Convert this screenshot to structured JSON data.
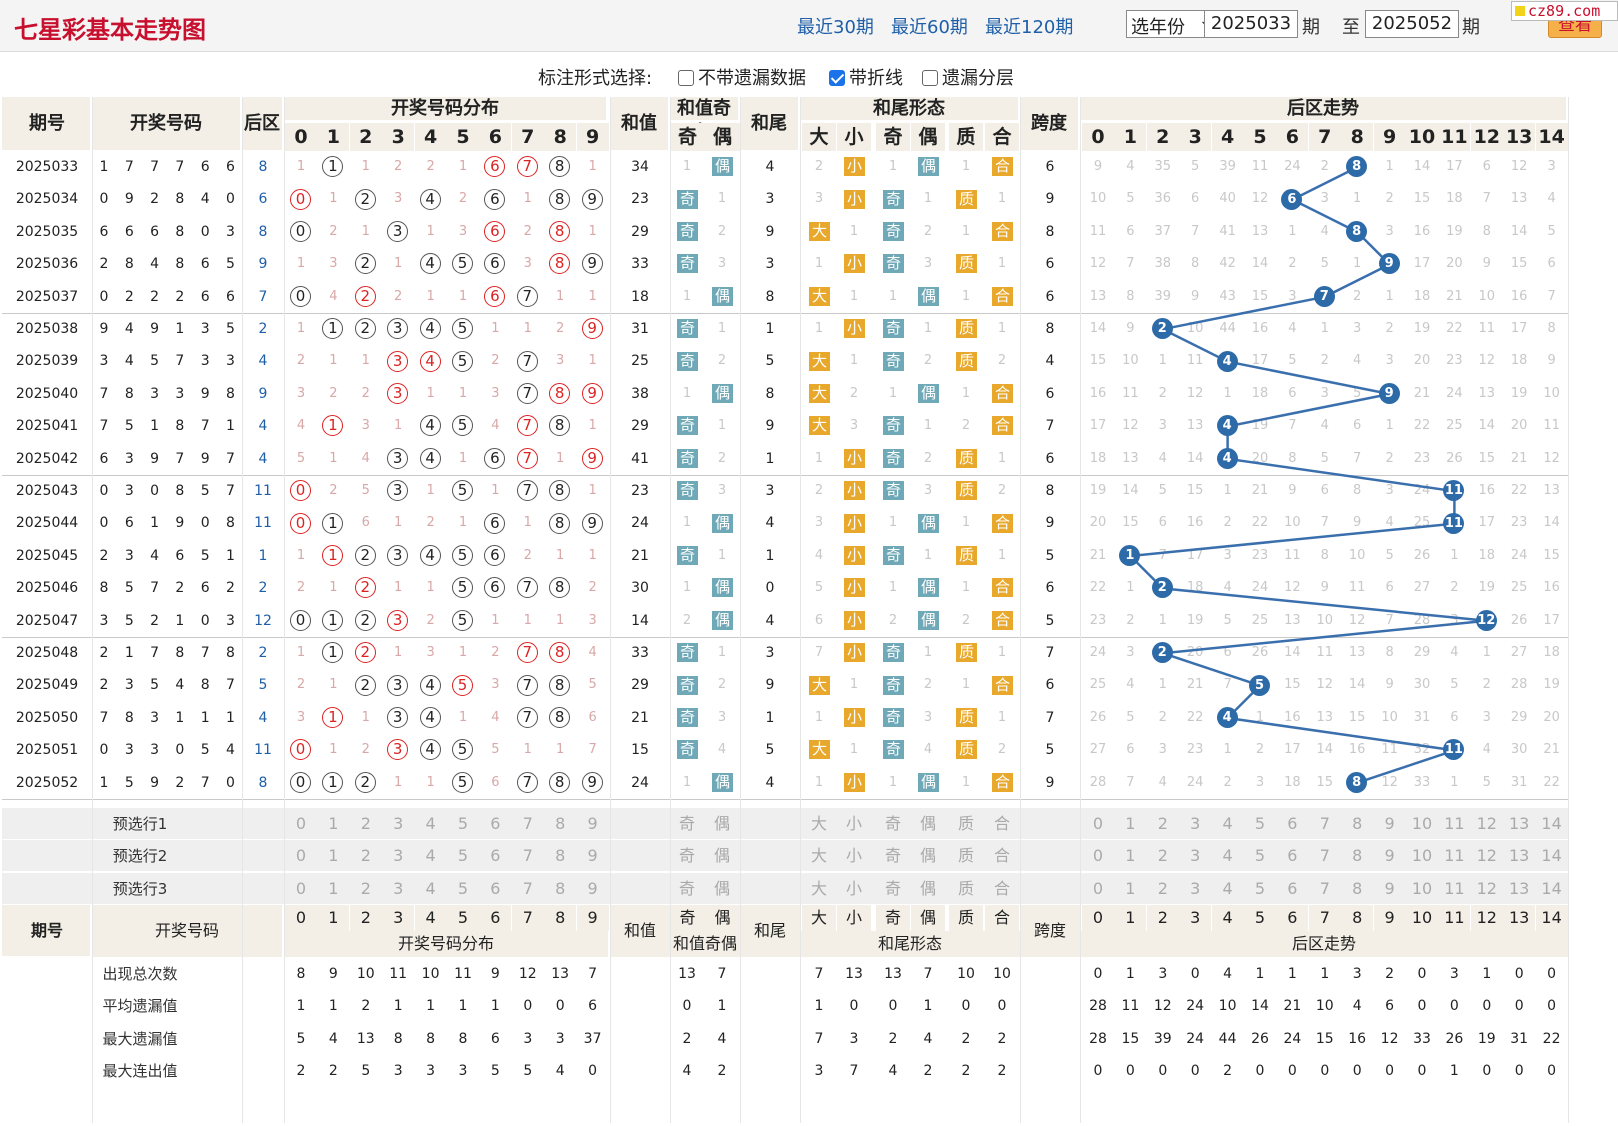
{
  "header": {
    "title": "七星彩基本走势图",
    "links": [
      "最近30期",
      "最近60期",
      "最近120期"
    ],
    "year_select": "选年份",
    "from_issue": "2025033",
    "to_issue": "2025052",
    "issue_label": "期",
    "to_label": "至",
    "query_label": "查看",
    "logo": "cz89.com"
  },
  "options": {
    "label": "标注形式选择:",
    "items": [
      {
        "label": "不带遗漏数据",
        "checked": false
      },
      {
        "label": "带折线",
        "checked": true
      },
      {
        "label": "遗漏分层",
        "checked": false
      }
    ]
  },
  "table_header": {
    "issue": "期号",
    "numbers": "开奖号码",
    "back": "后区",
    "dist": "开奖号码分布",
    "sum": "和值",
    "sum_parity": "和值奇偶",
    "odd": "奇",
    "even": "偶",
    "tail": "和尾",
    "tail_form": "和尾形态",
    "big": "大",
    "small": "小",
    "prime": "质",
    "composite": "合",
    "span": "跨度",
    "back_trend": "后区走势"
  },
  "rows": [
    {
      "issue": "2025033",
      "nums": [
        1,
        7,
        7,
        7,
        6,
        6
      ],
      "back": 8,
      "dist": [
        "1",
        "B",
        "1",
        "2",
        "2",
        "1",
        "R",
        "R",
        "B",
        "1"
      ],
      "sum": 34,
      "par": [
        "1",
        "偶"
      ],
      "tail": 4,
      "form": [
        "2",
        "小",
        "1",
        "偶",
        "1",
        "合"
      ],
      "span": 6,
      "btrend": [
        "9",
        "4",
        "35",
        "5",
        "39",
        "11",
        "24",
        "2",
        "N",
        "1",
        "14",
        "17",
        "6",
        "12",
        "3"
      ]
    },
    {
      "issue": "2025034",
      "nums": [
        0,
        9,
        2,
        8,
        4,
        0
      ],
      "back": 6,
      "dist": [
        "R",
        "1",
        "B",
        "3",
        "B",
        "2",
        "B",
        "1",
        "B",
        "B"
      ],
      "sum": 23,
      "par": [
        "奇",
        "1"
      ],
      "tail": 3,
      "form": [
        "3",
        "小",
        "奇",
        "1",
        "质",
        "1"
      ],
      "span": 9,
      "btrend": [
        "10",
        "5",
        "36",
        "6",
        "40",
        "12",
        "N",
        "3",
        "1",
        "2",
        "15",
        "18",
        "7",
        "13",
        "4"
      ]
    },
    {
      "issue": "2025035",
      "nums": [
        6,
        6,
        6,
        8,
        0,
        3
      ],
      "back": 8,
      "dist": [
        "B",
        "2",
        "1",
        "B",
        "1",
        "3",
        "R",
        "2",
        "R",
        "1"
      ],
      "sum": 29,
      "par": [
        "奇",
        "2"
      ],
      "tail": 9,
      "form": [
        "大",
        "1",
        "奇",
        "2",
        "1",
        "合"
      ],
      "span": 8,
      "btrend": [
        "11",
        "6",
        "37",
        "7",
        "41",
        "13",
        "1",
        "4",
        "N",
        "3",
        "16",
        "19",
        "8",
        "14",
        "5"
      ]
    },
    {
      "issue": "2025036",
      "nums": [
        2,
        8,
        4,
        8,
        6,
        5
      ],
      "back": 9,
      "dist": [
        "1",
        "3",
        "B",
        "1",
        "B",
        "B",
        "B",
        "3",
        "R",
        "B"
      ],
      "sum": 33,
      "par": [
        "奇",
        "3"
      ],
      "tail": 3,
      "form": [
        "1",
        "小",
        "奇",
        "3",
        "质",
        "1"
      ],
      "span": 6,
      "btrend": [
        "12",
        "7",
        "38",
        "8",
        "42",
        "14",
        "2",
        "5",
        "1",
        "N",
        "17",
        "20",
        "9",
        "15",
        "6"
      ]
    },
    {
      "issue": "2025037",
      "nums": [
        0,
        2,
        2,
        2,
        6,
        6
      ],
      "back": 7,
      "dist": [
        "B",
        "4",
        "R",
        "2",
        "1",
        "1",
        "R",
        "B",
        "1",
        "1"
      ],
      "sum": 18,
      "par": [
        "1",
        "偶"
      ],
      "tail": 8,
      "form": [
        "大",
        "1",
        "1",
        "偶",
        "1",
        "合"
      ],
      "span": 6,
      "btrend": [
        "13",
        "8",
        "39",
        "9",
        "43",
        "15",
        "3",
        "N",
        "2",
        "1",
        "18",
        "21",
        "10",
        "16",
        "7"
      ]
    },
    {
      "issue": "2025038",
      "nums": [
        9,
        4,
        9,
        1,
        3,
        5
      ],
      "back": 2,
      "dist": [
        "1",
        "B",
        "B",
        "B",
        "B",
        "B",
        "1",
        "1",
        "2",
        "R"
      ],
      "sum": 31,
      "par": [
        "奇",
        "1"
      ],
      "tail": 1,
      "form": [
        "1",
        "小",
        "奇",
        "1",
        "质",
        "1"
      ],
      "span": 8,
      "btrend": [
        "14",
        "9",
        "N",
        "10",
        "44",
        "16",
        "4",
        "1",
        "3",
        "2",
        "19",
        "22",
        "11",
        "17",
        "8"
      ]
    },
    {
      "issue": "2025039",
      "nums": [
        3,
        4,
        5,
        7,
        3,
        3
      ],
      "back": 4,
      "dist": [
        "2",
        "1",
        "1",
        "R",
        "R",
        "B",
        "2",
        "B",
        "3",
        "1"
      ],
      "sum": 25,
      "par": [
        "奇",
        "2"
      ],
      "tail": 5,
      "form": [
        "大",
        "1",
        "奇",
        "2",
        "质",
        "2"
      ],
      "span": 4,
      "btrend": [
        "15",
        "10",
        "1",
        "11",
        "N",
        "17",
        "5",
        "2",
        "4",
        "3",
        "20",
        "23",
        "12",
        "18",
        "9"
      ]
    },
    {
      "issue": "2025040",
      "nums": [
        7,
        8,
        3,
        3,
        9,
        8
      ],
      "back": 9,
      "dist": [
        "3",
        "2",
        "2",
        "R",
        "1",
        "1",
        "3",
        "B",
        "R",
        "R"
      ],
      "sum": 38,
      "par": [
        "1",
        "偶"
      ],
      "tail": 8,
      "form": [
        "大",
        "2",
        "1",
        "偶",
        "1",
        "合"
      ],
      "span": 6,
      "btrend": [
        "16",
        "11",
        "2",
        "12",
        "1",
        "18",
        "6",
        "3",
        "5",
        "N",
        "21",
        "24",
        "13",
        "19",
        "10"
      ]
    },
    {
      "issue": "2025041",
      "nums": [
        7,
        5,
        1,
        8,
        7,
        1
      ],
      "back": 4,
      "dist": [
        "4",
        "R",
        "3",
        "1",
        "B",
        "B",
        "4",
        "R",
        "B",
        "1"
      ],
      "sum": 29,
      "par": [
        "奇",
        "1"
      ],
      "tail": 9,
      "form": [
        "大",
        "3",
        "奇",
        "1",
        "2",
        "合"
      ],
      "span": 7,
      "btrend": [
        "17",
        "12",
        "3",
        "13",
        "N",
        "19",
        "7",
        "4",
        "6",
        "1",
        "22",
        "25",
        "14",
        "20",
        "11"
      ]
    },
    {
      "issue": "2025042",
      "nums": [
        6,
        3,
        9,
        7,
        9,
        7
      ],
      "back": 4,
      "dist": [
        "5",
        "1",
        "4",
        "B",
        "B",
        "1",
        "B",
        "R",
        "1",
        "R"
      ],
      "sum": 41,
      "par": [
        "奇",
        "2"
      ],
      "tail": 1,
      "form": [
        "1",
        "小",
        "奇",
        "2",
        "质",
        "1"
      ],
      "span": 6,
      "btrend": [
        "18",
        "13",
        "4",
        "14",
        "N",
        "20",
        "8",
        "5",
        "7",
        "2",
        "23",
        "26",
        "15",
        "21",
        "12"
      ]
    },
    {
      "issue": "2025043",
      "nums": [
        0,
        3,
        0,
        8,
        5,
        7
      ],
      "back": 11,
      "dist": [
        "R",
        "2",
        "5",
        "B",
        "1",
        "B",
        "1",
        "B",
        "B",
        "1"
      ],
      "sum": 23,
      "par": [
        "奇",
        "3"
      ],
      "tail": 3,
      "form": [
        "2",
        "小",
        "奇",
        "3",
        "质",
        "2"
      ],
      "span": 8,
      "btrend": [
        "19",
        "14",
        "5",
        "15",
        "1",
        "21",
        "9",
        "6",
        "8",
        "3",
        "24",
        "N",
        "16",
        "22",
        "13"
      ]
    },
    {
      "issue": "2025044",
      "nums": [
        0,
        6,
        1,
        9,
        0,
        8
      ],
      "back": 11,
      "dist": [
        "R",
        "B",
        "6",
        "1",
        "2",
        "1",
        "B",
        "1",
        "B",
        "B"
      ],
      "sum": 24,
      "par": [
        "1",
        "偶"
      ],
      "tail": 4,
      "form": [
        "3",
        "小",
        "1",
        "偶",
        "1",
        "合"
      ],
      "span": 9,
      "btrend": [
        "20",
        "15",
        "6",
        "16",
        "2",
        "22",
        "10",
        "7",
        "9",
        "4",
        "25",
        "N",
        "17",
        "23",
        "14"
      ]
    },
    {
      "issue": "2025045",
      "nums": [
        2,
        3,
        4,
        6,
        5,
        1
      ],
      "back": 1,
      "dist": [
        "1",
        "R",
        "B",
        "B",
        "B",
        "B",
        "B",
        "2",
        "1",
        "1"
      ],
      "sum": 21,
      "par": [
        "奇",
        "1"
      ],
      "tail": 1,
      "form": [
        "4",
        "小",
        "奇",
        "1",
        "质",
        "1"
      ],
      "span": 5,
      "btrend": [
        "21",
        "N",
        "7",
        "17",
        "3",
        "23",
        "11",
        "8",
        "10",
        "5",
        "26",
        "1",
        "18",
        "24",
        "15"
      ]
    },
    {
      "issue": "2025046",
      "nums": [
        8,
        5,
        7,
        2,
        6,
        2
      ],
      "back": 2,
      "dist": [
        "2",
        "1",
        "R",
        "1",
        "1",
        "B",
        "B",
        "B",
        "B",
        "2"
      ],
      "sum": 30,
      "par": [
        "1",
        "偶"
      ],
      "tail": 0,
      "form": [
        "5",
        "小",
        "1",
        "偶",
        "1",
        "合"
      ],
      "span": 6,
      "btrend": [
        "22",
        "1",
        "N",
        "18",
        "4",
        "24",
        "12",
        "9",
        "11",
        "6",
        "27",
        "2",
        "19",
        "25",
        "16"
      ]
    },
    {
      "issue": "2025047",
      "nums": [
        3,
        5,
        2,
        1,
        0,
        3
      ],
      "back": 12,
      "dist": [
        "B",
        "B",
        "B",
        "R",
        "2",
        "B",
        "1",
        "1",
        "1",
        "3"
      ],
      "sum": 14,
      "par": [
        "2",
        "偶"
      ],
      "tail": 4,
      "form": [
        "6",
        "小",
        "2",
        "偶",
        "2",
        "合"
      ],
      "span": 5,
      "btrend": [
        "23",
        "2",
        "1",
        "19",
        "5",
        "25",
        "13",
        "10",
        "12",
        "7",
        "28",
        "3",
        "N",
        "26",
        "17"
      ]
    },
    {
      "issue": "2025048",
      "nums": [
        2,
        1,
        7,
        8,
        7,
        8
      ],
      "back": 2,
      "dist": [
        "1",
        "B",
        "R",
        "1",
        "3",
        "1",
        "2",
        "R",
        "R",
        "4"
      ],
      "sum": 33,
      "par": [
        "奇",
        "1"
      ],
      "tail": 3,
      "form": [
        "7",
        "小",
        "奇",
        "1",
        "质",
        "1"
      ],
      "span": 7,
      "btrend": [
        "24",
        "3",
        "N",
        "20",
        "6",
        "26",
        "14",
        "11",
        "13",
        "8",
        "29",
        "4",
        "1",
        "27",
        "18"
      ]
    },
    {
      "issue": "2025049",
      "nums": [
        2,
        3,
        5,
        4,
        8,
        7
      ],
      "back": 5,
      "dist": [
        "2",
        "1",
        "B",
        "B",
        "B",
        "R",
        "3",
        "B",
        "B",
        "5"
      ],
      "sum": 29,
      "par": [
        "奇",
        "2"
      ],
      "tail": 9,
      "form": [
        "大",
        "1",
        "奇",
        "2",
        "1",
        "合"
      ],
      "span": 6,
      "btrend": [
        "25",
        "4",
        "1",
        "21",
        "7",
        "N",
        "15",
        "12",
        "14",
        "9",
        "30",
        "5",
        "2",
        "28",
        "19"
      ]
    },
    {
      "issue": "2025050",
      "nums": [
        7,
        8,
        3,
        1,
        1,
        1
      ],
      "back": 4,
      "dist": [
        "3",
        "R",
        "1",
        "B",
        "B",
        "1",
        "4",
        "B",
        "B",
        "6"
      ],
      "sum": 21,
      "par": [
        "奇",
        "3"
      ],
      "tail": 1,
      "form": [
        "1",
        "小",
        "奇",
        "3",
        "质",
        "1"
      ],
      "span": 7,
      "btrend": [
        "26",
        "5",
        "2",
        "22",
        "N",
        "1",
        "16",
        "13",
        "15",
        "10",
        "31",
        "6",
        "3",
        "29",
        "20"
      ]
    },
    {
      "issue": "2025051",
      "nums": [
        0,
        3,
        3,
        0,
        5,
        4
      ],
      "back": 11,
      "dist": [
        "R",
        "1",
        "2",
        "R",
        "B",
        "B",
        "5",
        "1",
        "1",
        "7"
      ],
      "sum": 15,
      "par": [
        "奇",
        "4"
      ],
      "tail": 5,
      "form": [
        "大",
        "1",
        "奇",
        "4",
        "质",
        "2"
      ],
      "span": 5,
      "btrend": [
        "27",
        "6",
        "3",
        "23",
        "1",
        "2",
        "17",
        "14",
        "16",
        "11",
        "32",
        "N",
        "4",
        "30",
        "21"
      ]
    },
    {
      "issue": "2025052",
      "nums": [
        1,
        5,
        9,
        2,
        7,
        0
      ],
      "back": 8,
      "dist": [
        "B",
        "B",
        "B",
        "1",
        "1",
        "B",
        "6",
        "B",
        "B",
        "B"
      ],
      "sum": 24,
      "par": [
        "1",
        "偶"
      ],
      "tail": 4,
      "form": [
        "1",
        "小",
        "1",
        "偶",
        "1",
        "合"
      ],
      "span": 9,
      "btrend": [
        "28",
        "7",
        "4",
        "24",
        "2",
        "3",
        "18",
        "15",
        "N",
        "12",
        "33",
        "1",
        "5",
        "31",
        "22"
      ]
    }
  ],
  "preselect": {
    "labels": [
      "预选行1",
      "预选行2",
      "预选行3"
    ],
    "dist": [
      "0",
      "1",
      "2",
      "3",
      "4",
      "5",
      "6",
      "7",
      "8",
      "9"
    ],
    "par": [
      "奇",
      "偶"
    ],
    "form": [
      "大",
      "小",
      "奇",
      "偶",
      "质",
      "合"
    ],
    "back": [
      "0",
      "1",
      "2",
      "3",
      "4",
      "5",
      "6",
      "7",
      "8",
      "9",
      "10",
      "11",
      "12",
      "13",
      "14"
    ]
  },
  "stats": {
    "labels": [
      "出现总次数",
      "平均遗漏值",
      "最大遗漏值",
      "最大连出值"
    ],
    "dist": [
      [
        "8",
        "9",
        "10",
        "11",
        "10",
        "11",
        "9",
        "12",
        "13",
        "7"
      ],
      [
        "1",
        "1",
        "2",
        "1",
        "1",
        "1",
        "1",
        "0",
        "0",
        "6"
      ],
      [
        "5",
        "4",
        "13",
        "8",
        "8",
        "8",
        "6",
        "3",
        "3",
        "37"
      ],
      [
        "2",
        "2",
        "5",
        "3",
        "3",
        "3",
        "5",
        "5",
        "4",
        "0"
      ]
    ],
    "par": [
      [
        "13",
        "7"
      ],
      [
        "0",
        "1"
      ],
      [
        "2",
        "4"
      ],
      [
        "4",
        "2"
      ]
    ],
    "form": [
      [
        "7",
        "13",
        "13",
        "7",
        "10",
        "10"
      ],
      [
        "1",
        "0",
        "0",
        "1",
        "0",
        "0"
      ],
      [
        "7",
        "3",
        "2",
        "4",
        "2",
        "2"
      ],
      [
        "3",
        "7",
        "4",
        "2",
        "2",
        "2"
      ]
    ],
    "back": [
      [
        "0",
        "1",
        "3",
        "0",
        "4",
        "1",
        "1",
        "1",
        "3",
        "2",
        "0",
        "3",
        "1",
        "0",
        "0"
      ],
      [
        "28",
        "11",
        "12",
        "24",
        "10",
        "14",
        "21",
        "10",
        "4",
        "6",
        "0",
        "0",
        "0",
        "0",
        "0"
      ],
      [
        "28",
        "15",
        "39",
        "24",
        "44",
        "26",
        "24",
        "15",
        "16",
        "12",
        "33",
        "26",
        "19",
        "31",
        "22"
      ],
      [
        "0",
        "0",
        "0",
        "0",
        "2",
        "0",
        "0",
        "0",
        "0",
        "0",
        "0",
        "1",
        "0",
        "0",
        "0"
      ]
    ]
  }
}
